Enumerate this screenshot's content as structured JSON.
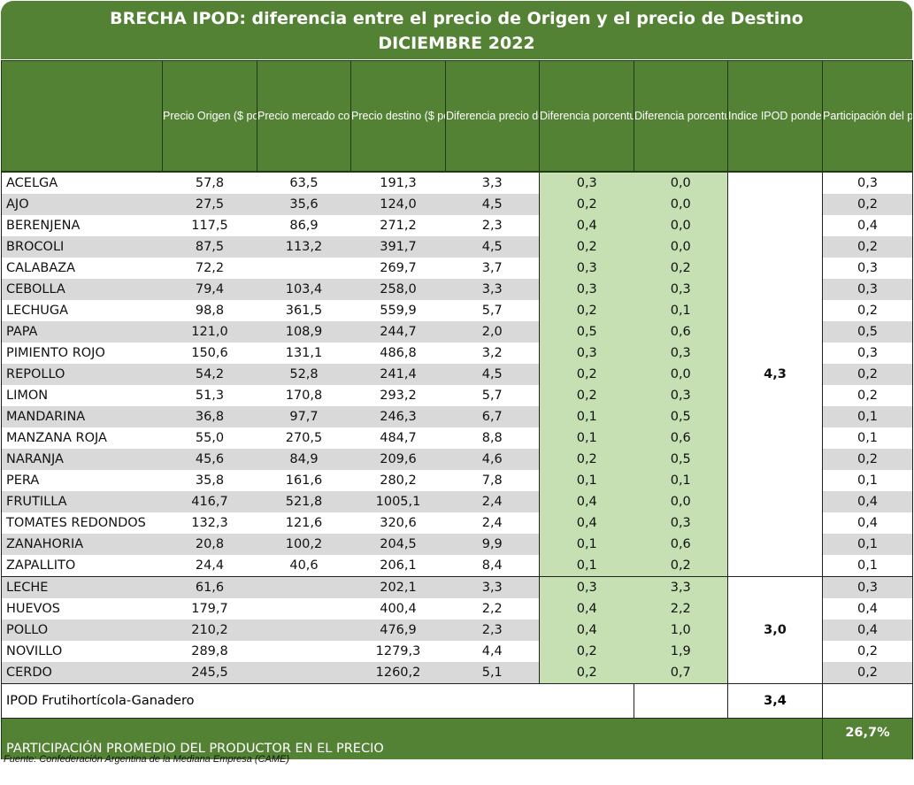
{
  "title": {
    "line1": "BRECHA IPOD: diferencia entre el precio de Origen y el precio de Destino",
    "line2": "DICIEMBRE 2022"
  },
  "headers": [
    "",
    "Precio Origen ($ por KG)",
    "Precio mercado concentrador ($ por KG)",
    "Precio destino ($ por KG)",
    "Diferencia precio destino/origen",
    "Diferencia porcentual destino/origen",
    "Diferencia porcentual destino/origen (PONDERADA)",
    "Indice IPOD ponderado",
    "Participación del productor en el precio de gondola"
  ],
  "groups": [
    {
      "ipod": "4,3",
      "rows": [
        [
          "ACELGA",
          "57,8",
          "63,5",
          "191,3",
          "3,3",
          "0,3",
          "0,0",
          "0,3"
        ],
        [
          "AJO",
          "27,5",
          "35,6",
          "124,0",
          "4,5",
          "0,2",
          "0,0",
          "0,2"
        ],
        [
          "BERENJENA",
          "117,5",
          "86,9",
          "271,2",
          "2,3",
          "0,4",
          "0,0",
          "0,4"
        ],
        [
          "BROCOLI",
          "87,5",
          "113,2",
          "391,7",
          "4,5",
          "0,2",
          "0,0",
          "0,2"
        ],
        [
          "CALABAZA",
          "72,2",
          "",
          "269,7",
          "3,7",
          "0,3",
          "0,2",
          "0,3"
        ],
        [
          "CEBOLLA",
          "79,4",
          "103,4",
          "258,0",
          "3,3",
          "0,3",
          "0,3",
          "0,3"
        ],
        [
          "LECHUGA",
          "98,8",
          "361,5",
          "559,9",
          "5,7",
          "0,2",
          "0,1",
          "0,2"
        ],
        [
          "PAPA",
          "121,0",
          "108,9",
          "244,7",
          "2,0",
          "0,5",
          "0,6",
          "0,5"
        ],
        [
          "PIMIENTO ROJO",
          "150,6",
          "131,1",
          "486,8",
          "3,2",
          "0,3",
          "0,3",
          "0,3"
        ],
        [
          "REPOLLO",
          "54,2",
          "52,8",
          "241,4",
          "4,5",
          "0,2",
          "0,0",
          "0,2"
        ],
        [
          "LIMON",
          "51,3",
          "170,8",
          "293,2",
          "5,7",
          "0,2",
          "0,3",
          "0,2"
        ],
        [
          "MANDARINA",
          "36,8",
          "97,7",
          "246,3",
          "6,7",
          "0,1",
          "0,5",
          "0,1"
        ],
        [
          "MANZANA ROJA",
          "55,0",
          "270,5",
          "484,7",
          "8,8",
          "0,1",
          "0,6",
          "0,1"
        ],
        [
          "NARANJA",
          "45,6",
          "84,9",
          "209,6",
          "4,6",
          "0,2",
          "0,5",
          "0,2"
        ],
        [
          "PERA",
          "35,8",
          "161,6",
          "280,2",
          "7,8",
          "0,1",
          "0,1",
          "0,1"
        ],
        [
          "FRUTILLA",
          "416,7",
          "521,8",
          "1005,1",
          "2,4",
          "0,4",
          "0,0",
          "0,4"
        ],
        [
          "TOMATES REDONDOS",
          "132,3",
          "121,6",
          "320,6",
          "2,4",
          "0,4",
          "0,3",
          "0,4"
        ],
        [
          "ZANAHORIA",
          "20,8",
          "100,2",
          "204,5",
          "9,9",
          "0,1",
          "0,6",
          "0,1"
        ],
        [
          "ZAPALLITO",
          "24,4",
          "40,6",
          "206,1",
          "8,4",
          "0,1",
          "0,2",
          "0,1"
        ]
      ]
    },
    {
      "ipod": "3,0",
      "rows": [
        [
          "LECHE",
          "61,6",
          "",
          "202,1",
          "3,3",
          "0,3",
          "3,3",
          "0,3"
        ],
        [
          "HUEVOS",
          "179,7",
          "",
          "400,4",
          "2,2",
          "0,4",
          "2,2",
          "0,4"
        ],
        [
          "POLLO",
          "210,2",
          "",
          "476,9",
          "2,3",
          "0,4",
          "1,0",
          "0,4"
        ],
        [
          "NOVILLO",
          "289,8",
          "",
          "1279,3",
          "4,4",
          "0,2",
          "1,9",
          "0,2"
        ],
        [
          "CERDO",
          "245,5",
          "",
          "1260,2",
          "5,1",
          "0,2",
          "0,7",
          "0,2"
        ]
      ]
    }
  ],
  "ipod_total": {
    "label": "IPOD Frutihortícola-Ganadero",
    "value": "3,4"
  },
  "participacion": {
    "label": "PARTICIPACIÓN PROMEDIO DEL PRODUCTOR EN EL PRECIO",
    "value": "26,7%"
  },
  "source": "Fuente: Confederación Argentina de la Mediana Empresa (CAME)",
  "colors": {
    "header_green": "#548235",
    "light_green": "#c6e0b4",
    "stripe_gray": "#d9d9d9"
  }
}
